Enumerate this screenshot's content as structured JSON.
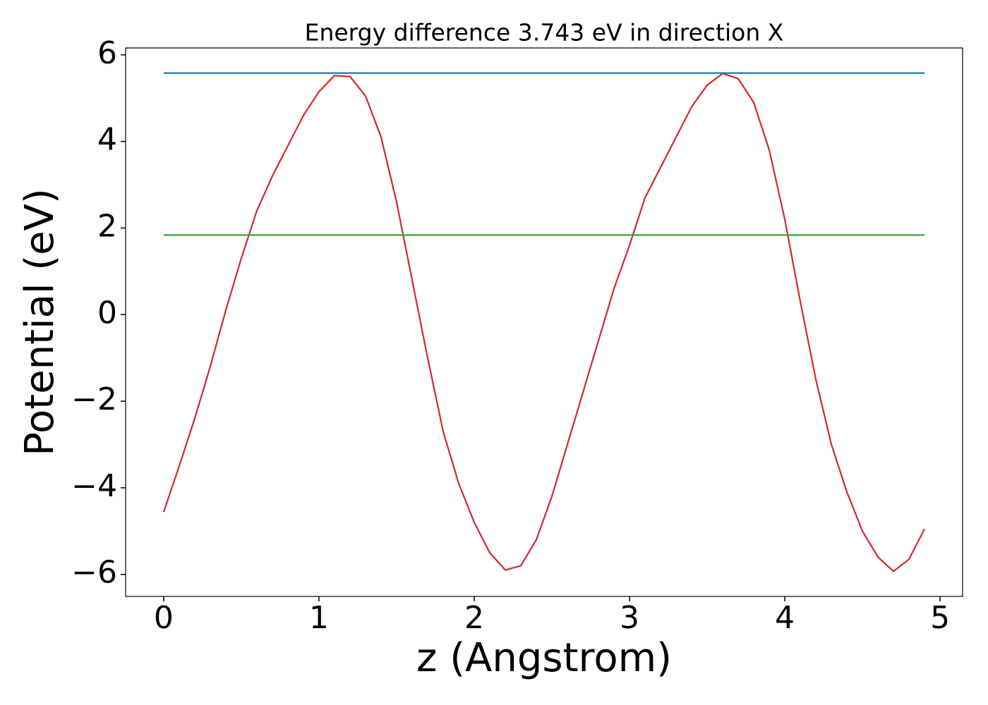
{
  "chart_data": {
    "type": "line",
    "title": "Energy difference 3.743 eV in direction X",
    "xlabel": "z (Angstrom)",
    "ylabel": "Potential (eV)",
    "xlim": [
      -0.245,
      5.145
    ],
    "ylim": [
      -6.51,
      6.16
    ],
    "xticks": [
      0,
      1,
      2,
      3,
      4,
      5
    ],
    "yticks": [
      {
        "value": -6,
        "label": "−6"
      },
      {
        "value": -4,
        "label": "−4"
      },
      {
        "value": -2,
        "label": "−2"
      },
      0,
      2,
      4,
      6
    ],
    "grid": false,
    "series": [
      {
        "color": "#d62728",
        "x": [
          0,
          0.1,
          0.2,
          0.3,
          0.4,
          0.5,
          0.6,
          0.7,
          0.8,
          0.9,
          1.0,
          1.1,
          1.2,
          1.3,
          1.4,
          1.5,
          1.6,
          1.7,
          1.8,
          1.9,
          2.0,
          2.1,
          2.2,
          2.3,
          2.4,
          2.5,
          2.6,
          2.7,
          2.8,
          2.9,
          3.0,
          3.1,
          3.2,
          3.3,
          3.4,
          3.5,
          3.6,
          3.7,
          3.8,
          3.9,
          4.0,
          4.1,
          4.2,
          4.3,
          4.4,
          4.5,
          4.6,
          4.7,
          4.8,
          4.9
        ],
        "values": [
          -4.56,
          -3.5,
          -2.4,
          -1.2,
          0.1,
          1.3,
          2.4,
          3.2,
          3.9,
          4.6,
          5.15,
          5.52,
          5.5,
          5.05,
          4.1,
          2.6,
          0.8,
          -1.0,
          -2.7,
          -3.9,
          -4.8,
          -5.5,
          -5.9,
          -5.8,
          -5.2,
          -4.2,
          -3.0,
          -1.8,
          -0.6,
          0.6,
          1.6,
          2.7,
          3.4,
          4.1,
          4.8,
          5.3,
          5.57,
          5.45,
          4.9,
          3.8,
          2.2,
          0.3,
          -1.5,
          -3.0,
          -4.1,
          -5.0,
          -5.6,
          -5.93,
          -5.65,
          -4.95
        ]
      },
      {
        "color": "#1f77b4",
        "x": [
          0,
          4.9
        ],
        "values": [
          5.58,
          5.58
        ]
      },
      {
        "color": "#2ca02c",
        "x": [
          0,
          4.9
        ],
        "values": [
          1.837,
          1.837
        ]
      }
    ]
  }
}
